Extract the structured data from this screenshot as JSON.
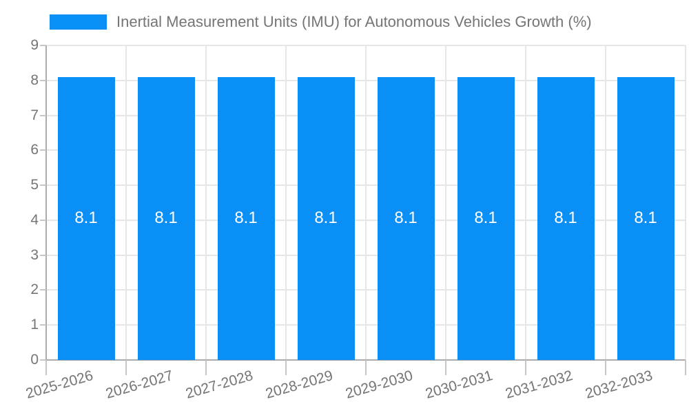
{
  "chart_data": {
    "type": "bar",
    "title": "Inertial Measurement Units (IMU) for Autonomous Vehicles Growth (%)",
    "legend": {
      "label": "Inertial Measurement Units (IMU) for Autonomous Vehicles Growth (%)",
      "position": "top"
    },
    "categories": [
      "2025-2026",
      "2026-2027",
      "2027-2028",
      "2028-2029",
      "2029-2030",
      "2030-2031",
      "2031-2032",
      "2032-2033"
    ],
    "values": [
      8.1,
      8.1,
      8.1,
      8.1,
      8.1,
      8.1,
      8.1,
      8.1
    ],
    "bar_labels": [
      "8.1",
      "8.1",
      "8.1",
      "8.1",
      "8.1",
      "8.1",
      "8.1",
      "8.1"
    ],
    "y_ticks": [
      "0",
      "1",
      "2",
      "3",
      "4",
      "5",
      "6",
      "7",
      "8",
      "9"
    ],
    "ylim": [
      0,
      9
    ],
    "xlabel": "",
    "ylabel": "",
    "grid": true,
    "colors": {
      "bar": "#0a8ff7",
      "grid": "#e6e6e6",
      "axis": "#aaaaaa",
      "tick": "#c6c6c6",
      "tick_text": "#757575",
      "title_text": "#757575",
      "bar_label_text": "#ffffff",
      "background": "#ffffff"
    }
  }
}
